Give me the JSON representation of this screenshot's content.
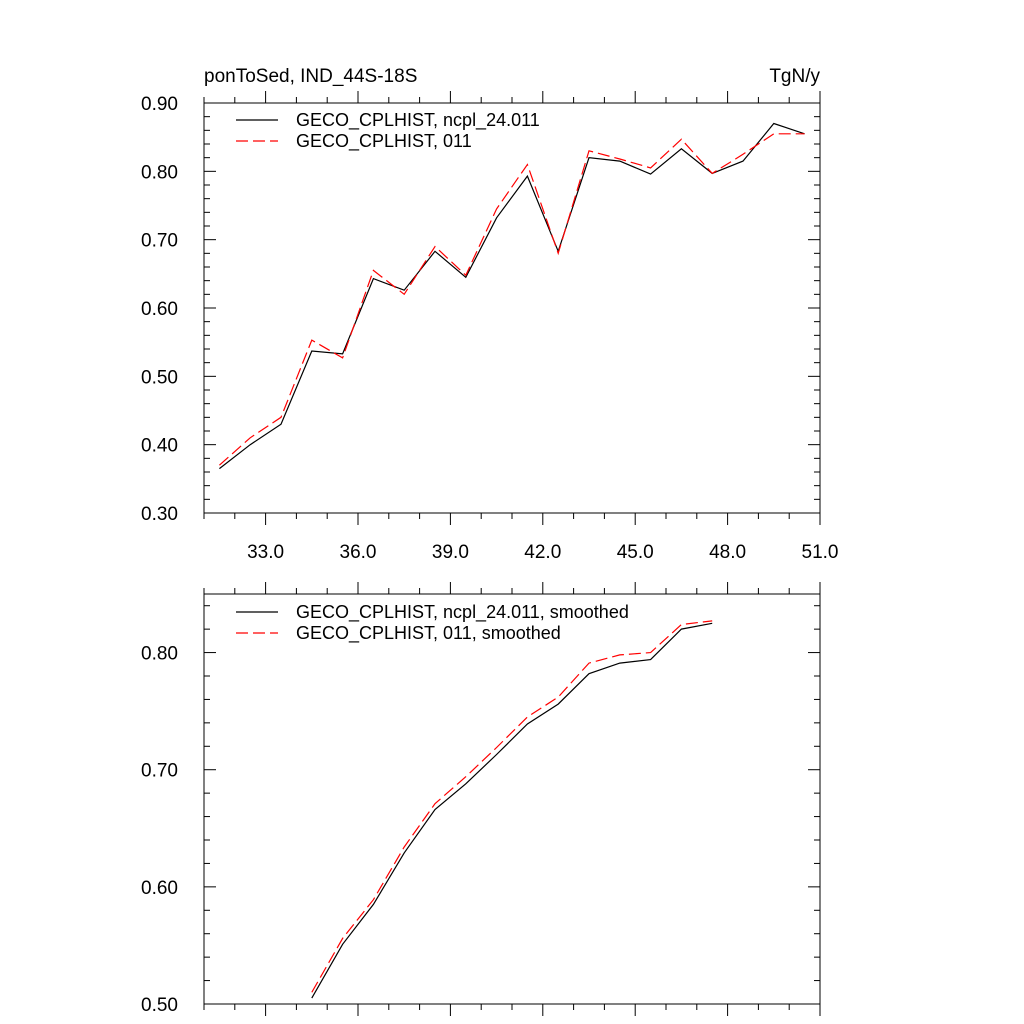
{
  "chart_data": [
    {
      "type": "line",
      "title_left": "ponToSed, IND_44S-18S",
      "title_right": "TgN/y",
      "xlabel": "",
      "ylabel": "",
      "xlim": [
        31.0,
        51.0
      ],
      "ylim": [
        0.3,
        0.9
      ],
      "xticks": [
        33.0,
        36.0,
        39.0,
        42.0,
        45.0,
        48.0,
        51.0
      ],
      "xtick_labels": [
        "33.0",
        "36.0",
        "39.0",
        "42.0",
        "45.0",
        "48.0",
        "51.0"
      ],
      "yticks": [
        0.3,
        0.4,
        0.5,
        0.6,
        0.7,
        0.8,
        0.9
      ],
      "ytick_labels": [
        "0.30",
        "0.40",
        "0.50",
        "0.60",
        "0.70",
        "0.80",
        "0.90"
      ],
      "legend_position": "top-left",
      "x": [
        31.5,
        32.5,
        33.5,
        34.5,
        35.5,
        36.5,
        37.5,
        38.5,
        39.5,
        40.5,
        41.5,
        42.5,
        43.5,
        44.5,
        45.5,
        46.5,
        47.5,
        48.5,
        49.5,
        50.5
      ],
      "series": [
        {
          "name": "GECO_CPLHIST, ncpl_24.011",
          "color": "#000000",
          "dash": "solid",
          "values": [
            0.365,
            0.4,
            0.43,
            0.537,
            0.533,
            0.643,
            0.626,
            0.683,
            0.645,
            0.732,
            0.793,
            0.683,
            0.82,
            0.815,
            0.796,
            0.833,
            0.797,
            0.815,
            0.87,
            0.855
          ]
        },
        {
          "name": "GECO_CPLHIST, 011",
          "color": "#ff0000",
          "dash": "dashed",
          "values": [
            0.37,
            0.41,
            0.44,
            0.553,
            0.527,
            0.655,
            0.62,
            0.69,
            0.648,
            0.745,
            0.81,
            0.68,
            0.83,
            0.818,
            0.805,
            0.847,
            0.797,
            0.825,
            0.855,
            0.855
          ]
        }
      ]
    },
    {
      "type": "line",
      "xlim": [
        31.0,
        51.0
      ],
      "ylim": [
        0.5,
        0.85
      ],
      "xticks": [
        33.0,
        36.0,
        39.0,
        42.0,
        45.0,
        48.0,
        51.0
      ],
      "xtick_labels": [],
      "yticks": [
        0.5,
        0.6,
        0.7,
        0.8
      ],
      "ytick_labels": [
        "0.50",
        "0.60",
        "0.70",
        "0.80"
      ],
      "legend_position": "top-left",
      "x": [
        34.5,
        35.5,
        36.5,
        37.5,
        38.5,
        39.5,
        40.5,
        41.5,
        42.5,
        43.5,
        44.5,
        45.5,
        46.5,
        47.5
      ],
      "series": [
        {
          "name": "GECO_CPLHIST, ncpl_24.011, smoothed",
          "color": "#000000",
          "dash": "solid",
          "values": [
            0.505,
            0.551,
            0.585,
            0.629,
            0.666,
            0.688,
            0.713,
            0.739,
            0.756,
            0.782,
            0.791,
            0.794,
            0.82,
            0.825
          ]
        },
        {
          "name": "GECO_CPLHIST, 011, smoothed",
          "color": "#ff0000",
          "dash": "dashed",
          "values": [
            0.51,
            0.556,
            0.589,
            0.634,
            0.671,
            0.694,
            0.719,
            0.745,
            0.762,
            0.791,
            0.798,
            0.8,
            0.824,
            0.827
          ]
        }
      ]
    }
  ]
}
